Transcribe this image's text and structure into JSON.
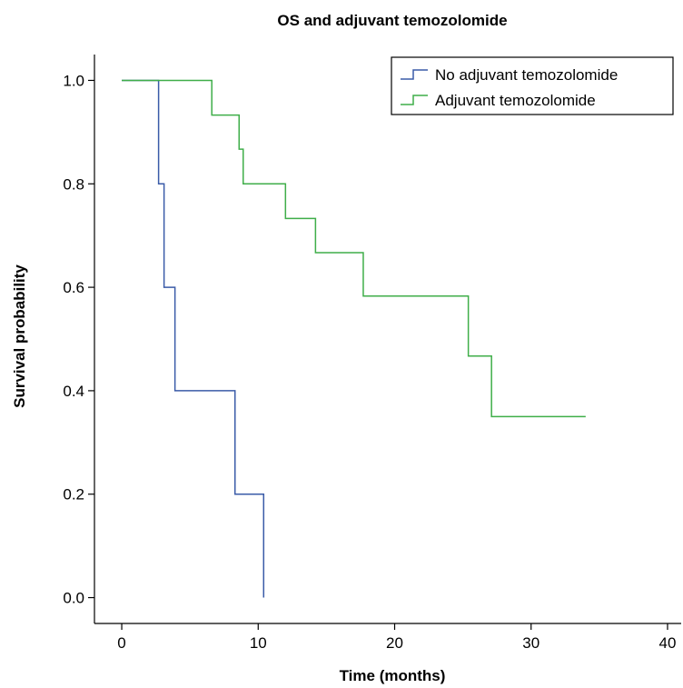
{
  "chart_data": {
    "type": "line",
    "step": true,
    "title": "OS and adjuvant temozolomide",
    "xlabel": "Time (months)",
    "ylabel": "Survival probability",
    "xlim": [
      -2,
      41
    ],
    "ylim": [
      -0.05,
      1.05
    ],
    "xticks": [
      0,
      10,
      20,
      30,
      40
    ],
    "yticks": [
      "0.0",
      "0.2",
      "0.4",
      "0.6",
      "0.8",
      "1.0"
    ],
    "grid": false,
    "legend_position": "top-right",
    "series": [
      {
        "name": "No adjuvant temozolomide",
        "color": "#3a5ba8",
        "x": [
          0,
          2.7,
          3.1,
          3.9,
          8.3,
          10.4,
          10.4
        ],
        "y": [
          1.0,
          0.8,
          0.6,
          0.4,
          0.2,
          0.0,
          0.0
        ]
      },
      {
        "name": "Adjuvant temozolomide",
        "color": "#3fae49",
        "x": [
          0,
          6.6,
          8.6,
          8.9,
          12.0,
          14.2,
          17.7,
          25.4,
          27.1,
          34.0
        ],
        "y": [
          1.0,
          0.933,
          0.867,
          0.8,
          0.733,
          0.667,
          0.583,
          0.467,
          0.35,
          0.35
        ]
      }
    ]
  }
}
